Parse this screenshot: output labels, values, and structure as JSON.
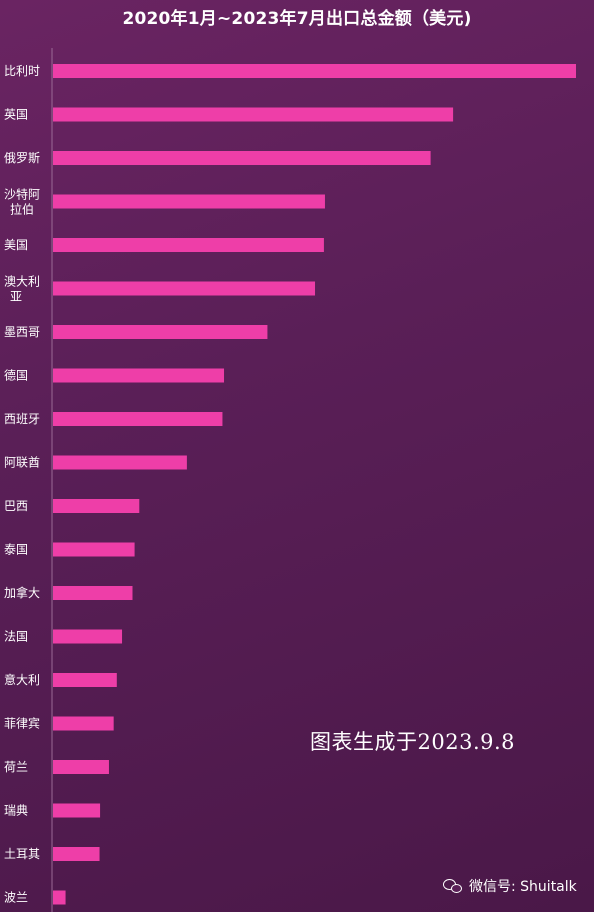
{
  "chart_data": {
    "type": "bar",
    "orientation": "horizontal",
    "title": "2020年1月~2023年7月出口总金额（美元)",
    "categories": [
      "比利时",
      "英国",
      "俄罗斯",
      "沙特阿拉伯",
      "美国",
      "澳大利亚",
      "墨西哥",
      "德国",
      "西班牙",
      "阿联酋",
      "巴西",
      "泰国",
      "加拿大",
      "法国",
      "意大利",
      "菲律宾",
      "荷兰",
      "瑞典",
      "土耳其",
      "波兰"
    ],
    "category_lines": [
      [
        "比利时"
      ],
      [
        "英国"
      ],
      [
        "俄罗斯"
      ],
      [
        "沙特阿",
        "拉伯"
      ],
      [
        "美国"
      ],
      [
        "澳大利",
        "亚"
      ],
      [
        "墨西哥"
      ],
      [
        "德国"
      ],
      [
        "西班牙"
      ],
      [
        "阿联酋"
      ],
      [
        "巴西"
      ],
      [
        "泰国"
      ],
      [
        "加拿大"
      ],
      [
        "法国"
      ],
      [
        "意大利"
      ],
      [
        "菲律宾"
      ],
      [
        "荷兰"
      ],
      [
        "瑞典"
      ],
      [
        "土耳其"
      ],
      [
        "波兰"
      ]
    ],
    "values": [
      100,
      76.5,
      72.2,
      52.0,
      51.8,
      50.1,
      41.0,
      32.7,
      32.4,
      25.6,
      16.5,
      15.6,
      15.2,
      13.2,
      12.2,
      11.6,
      10.7,
      9.0,
      8.9,
      2.4
    ],
    "value_scale": "relative",
    "bar_color": "#ee3ea8",
    "grid": false,
    "legend": "none"
  },
  "annotation": "图表生成于2023.9.8",
  "brand": {
    "icon": "wechat-icon",
    "text": "微信号: Shuitalk"
  }
}
